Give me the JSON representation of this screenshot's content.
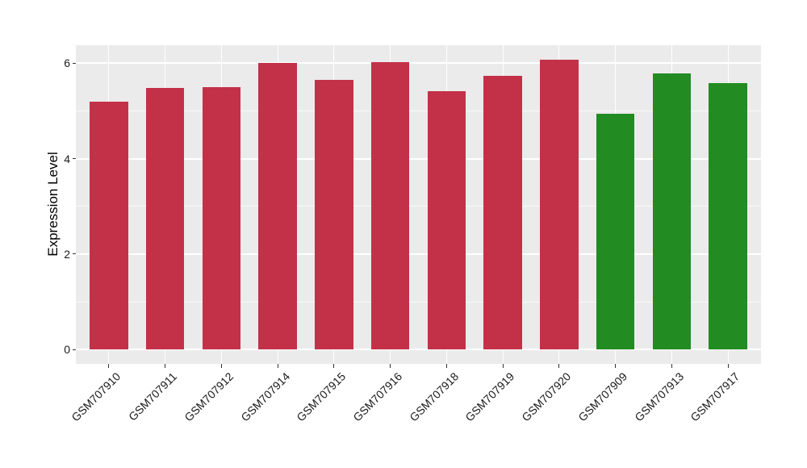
{
  "figure": {
    "background": "#ffffff",
    "panel_background": "#ebebeb",
    "grid_color": "#ffffff",
    "tick_color": "#333333",
    "axis_text_color": "#1a1a1a",
    "axis_title_color": "#000000",
    "red_bar_color": "#c33149",
    "green_bar_color": "#228b22"
  },
  "chart_data": {
    "type": "bar",
    "title": "",
    "xlabel": "",
    "ylabel": "Expression Level",
    "categories": [
      "GSM707910",
      "GSM707911",
      "GSM707912",
      "GSM707914",
      "GSM707915",
      "GSM707916",
      "GSM707918",
      "GSM707919",
      "GSM707920",
      "GSM707909",
      "GSM707913",
      "GSM707917"
    ],
    "values": [
      5.2,
      5.48,
      5.5,
      6.01,
      5.66,
      6.03,
      5.42,
      5.74,
      6.07,
      4.94,
      5.78,
      5.58
    ],
    "bar_colors": [
      "#c33149",
      "#c33149",
      "#c33149",
      "#c33149",
      "#c33149",
      "#c33149",
      "#c33149",
      "#c33149",
      "#c33149",
      "#228b22",
      "#228b22",
      "#228b22"
    ],
    "ylim": [
      -0.3,
      6.38
    ],
    "yticks": [
      0,
      2,
      4,
      6
    ],
    "yticks_minor": [
      1,
      3,
      5
    ],
    "grid": true,
    "legend": false,
    "x_tick_rotation_deg": 45
  }
}
